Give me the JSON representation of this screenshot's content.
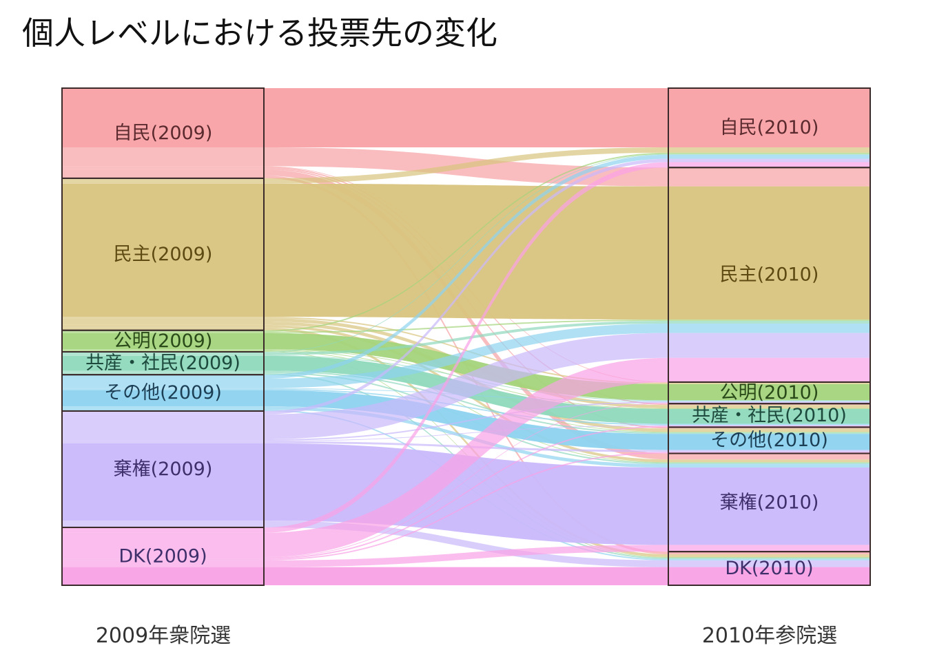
{
  "title": "個人レベルにおける投票先の変化",
  "chart_data": {
    "type": "sankey",
    "title": "個人レベルにおける投票先の変化",
    "axes": [
      "2009年衆院選",
      "2010年参院選"
    ],
    "colors": {
      "自民": "#F8A1A4",
      "民主": "#D9C47E",
      "公明": "#A3D47B",
      "共産・社民": "#8ED9BD",
      "その他": "#8DD3EF",
      "棄権": "#C9B8FB",
      "DK": "#F9A1E6"
    },
    "label_colors": {
      "自民": "#5A2A2E",
      "民主": "#5C4A12",
      "公明": "#2B4A1A",
      "共産・社民": "#1D4A3D",
      "その他": "#1D3F55",
      "棄権": "#3E2F6B",
      "DK": "#3E2F6B"
    },
    "sources": [
      {
        "key": "自民",
        "label": "自民(2009)"
      },
      {
        "key": "民主",
        "label": "民主(2009)"
      },
      {
        "key": "公明",
        "label": "公明(2009)"
      },
      {
        "key": "共産・社民",
        "label": "共産・社民(2009)"
      },
      {
        "key": "その他",
        "label": "その他(2009)"
      },
      {
        "key": "棄権",
        "label": "棄権(2009)"
      },
      {
        "key": "DK",
        "label": "DK(2009)"
      }
    ],
    "targets": [
      {
        "key": "自民",
        "label": "自民(2010)"
      },
      {
        "key": "民主",
        "label": "民主(2010)"
      },
      {
        "key": "公明",
        "label": "公明(2010)"
      },
      {
        "key": "共産・社民",
        "label": "共産・社民(2010)"
      },
      {
        "key": "その他",
        "label": "その他(2010)"
      },
      {
        "key": "棄権",
        "label": "棄権(2010)"
      },
      {
        "key": "DK",
        "label": "DK(2010)"
      }
    ],
    "flows": [
      {
        "from": "自民",
        "to": "自民",
        "value": 88
      },
      {
        "from": "自民",
        "to": "民主",
        "value": 28
      },
      {
        "from": "自民",
        "to": "公明",
        "value": 1
      },
      {
        "from": "自民",
        "to": "共産・社民",
        "value": 2
      },
      {
        "from": "自民",
        "to": "その他",
        "value": 2
      },
      {
        "from": "自民",
        "to": "棄権",
        "value": 9
      },
      {
        "from": "自民",
        "to": "DK",
        "value": 4
      },
      {
        "from": "民主",
        "to": "自民",
        "value": 8
      },
      {
        "from": "民主",
        "to": "民主",
        "value": 198
      },
      {
        "from": "民主",
        "to": "公明",
        "value": 2
      },
      {
        "from": "民主",
        "to": "共産・社民",
        "value": 5
      },
      {
        "from": "民主",
        "to": "その他",
        "value": 5
      },
      {
        "from": "民主",
        "to": "棄権",
        "value": 4
      },
      {
        "from": "民主",
        "to": "DK",
        "value": 4
      },
      {
        "from": "公明",
        "to": "自民",
        "value": 2
      },
      {
        "from": "公明",
        "to": "民主",
        "value": 2
      },
      {
        "from": "公明",
        "to": "公明",
        "value": 24
      },
      {
        "from": "公明",
        "to": "共産・社民",
        "value": 1
      },
      {
        "from": "公明",
        "to": "その他",
        "value": 1
      },
      {
        "from": "公明",
        "to": "棄権",
        "value": 1
      },
      {
        "from": "公明",
        "to": "DK",
        "value": 1
      },
      {
        "from": "共産・社民",
        "to": "自民",
        "value": 1
      },
      {
        "from": "共産・社民",
        "to": "民主",
        "value": 4
      },
      {
        "from": "共産・社民",
        "to": "公明",
        "value": 1
      },
      {
        "from": "共産・社民",
        "to": "共産・社民",
        "value": 22
      },
      {
        "from": "共産・社民",
        "to": "その他",
        "value": 2
      },
      {
        "from": "共産・社民",
        "to": "棄権",
        "value": 2
      },
      {
        "from": "共産・社民",
        "to": "DK",
        "value": 2
      },
      {
        "from": "その他",
        "to": "自民",
        "value": 6
      },
      {
        "from": "その他",
        "to": "民主",
        "value": 14
      },
      {
        "from": "その他",
        "to": "公明",
        "value": 1
      },
      {
        "from": "その他",
        "to": "共産・社民",
        "value": 2
      },
      {
        "from": "その他",
        "to": "その他",
        "value": 24
      },
      {
        "from": "その他",
        "to": "棄権",
        "value": 5
      },
      {
        "from": "その他",
        "to": "DK",
        "value": 2
      },
      {
        "from": "棄権",
        "to": "自民",
        "value": 5
      },
      {
        "from": "棄権",
        "to": "民主",
        "value": 37
      },
      {
        "from": "棄権",
        "to": "公明",
        "value": 2
      },
      {
        "from": "棄権",
        "to": "共産・社民",
        "value": 1
      },
      {
        "from": "棄権",
        "to": "その他",
        "value": 3
      },
      {
        "from": "棄権",
        "to": "棄権",
        "value": 115
      },
      {
        "from": "棄権",
        "to": "DK",
        "value": 10
      },
      {
        "from": "DK",
        "to": "自民",
        "value": 8
      },
      {
        "from": "DK",
        "to": "民主",
        "value": 36
      },
      {
        "from": "DK",
        "to": "公明",
        "value": 1
      },
      {
        "from": "DK",
        "to": "共産・社民",
        "value": 2
      },
      {
        "from": "DK",
        "to": "その他",
        "value": 2
      },
      {
        "from": "DK",
        "to": "棄権",
        "value": 10
      },
      {
        "from": "DK",
        "to": "DK",
        "value": 27
      }
    ]
  }
}
